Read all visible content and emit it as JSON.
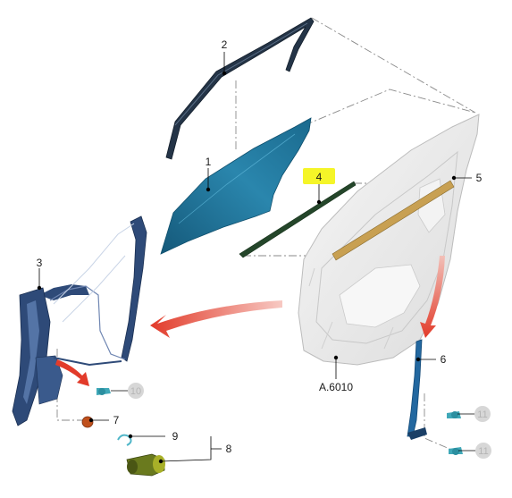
{
  "colors": {
    "glass": "#1e6f93",
    "glass_light": "#3fa0c4",
    "channel": "#243447",
    "seal_green": "#24462a",
    "seal_gold": "#c8a052",
    "door_shell": "#ececec",
    "regulator": "#2e4a78",
    "arrow_red": "#e23b2a",
    "callout_highlight": "#f5f528",
    "grey_circle": "#d7d7d7"
  },
  "callouts": {
    "c1": "1",
    "c2": "2",
    "c3": "3",
    "c4": "4",
    "c5": "5",
    "c6": "6",
    "c7": "7",
    "c8": "8",
    "c9": "9",
    "c10": "10",
    "c11a": "11",
    "c11b": "11",
    "ref": "A.6010"
  }
}
